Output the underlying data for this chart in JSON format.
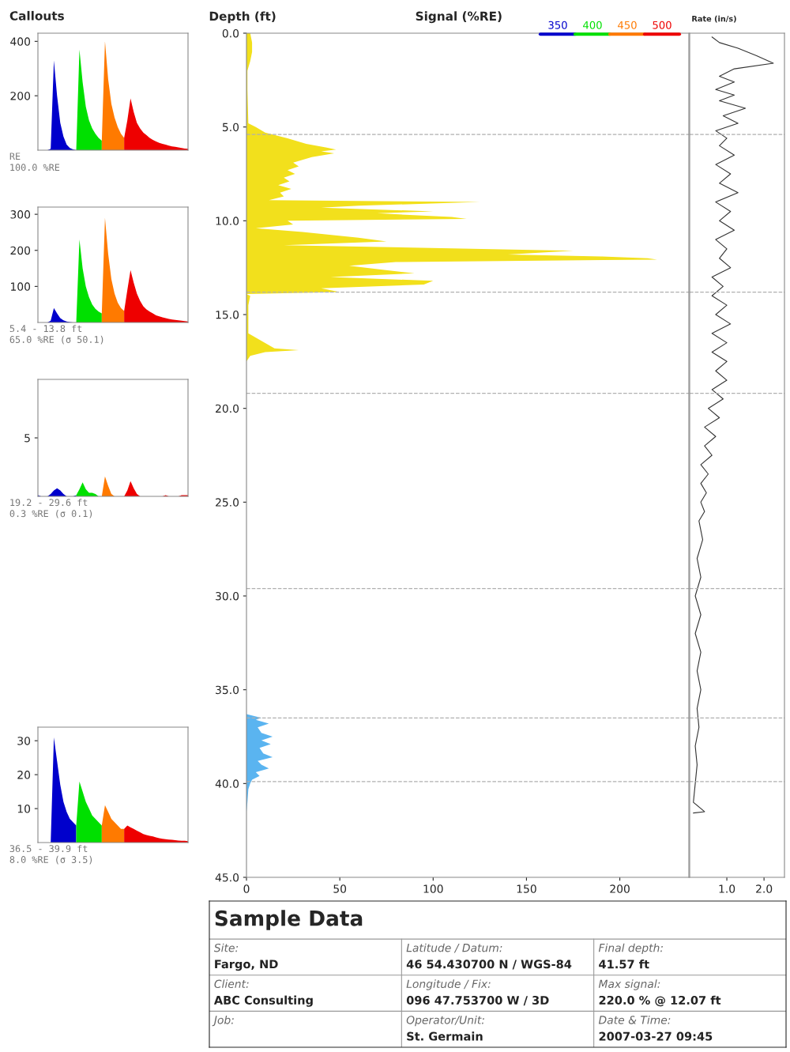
{
  "chart_data": [
    {
      "type": "area",
      "title": "Callouts",
      "categories": [
        null,
        null,
        null,
        null,
        null,
        null,
        null,
        null,
        null,
        null,
        null,
        null,
        null,
        null,
        null,
        null,
        null,
        null,
        null,
        null,
        null,
        null,
        null,
        null,
        null,
        null,
        null,
        null,
        null,
        null,
        null,
        null,
        null,
        null,
        null,
        null,
        null,
        null,
        null,
        null,
        null,
        null,
        null,
        null,
        null,
        null,
        null,
        null
      ],
      "ylim": [
        0,
        430
      ],
      "yticks": [
        200,
        400
      ],
      "tick_labels": "y",
      "legend": "top right",
      "annotations": [
        "RE",
        "100.0 %RE"
      ],
      "series": [
        {
          "name": "350",
          "color": "#0000cc",
          "values": [
            0,
            0,
            0,
            0,
            5,
            330,
            200,
            100,
            50,
            20,
            8,
            3,
            0,
            null,
            null,
            null,
            null,
            null,
            null,
            null,
            null,
            null,
            null,
            null,
            null,
            null,
            null,
            null,
            null,
            null,
            null,
            null,
            null,
            null,
            null,
            null,
            null,
            null,
            null,
            null,
            null,
            null,
            null,
            null,
            null,
            null,
            null,
            null
          ]
        },
        {
          "name": "400",
          "color": "#00e000",
          "values": [
            null,
            null,
            null,
            null,
            null,
            null,
            null,
            null,
            null,
            null,
            null,
            null,
            0,
            370,
            250,
            160,
            110,
            80,
            60,
            45,
            35,
            null,
            null,
            null,
            null,
            null,
            null,
            null,
            null,
            null,
            null,
            null,
            null,
            null,
            null,
            null,
            null,
            null,
            null,
            null,
            null,
            null,
            null,
            null,
            null,
            null,
            null,
            null
          ]
        },
        {
          "name": "450",
          "color": "#ff7a00",
          "values": [
            null,
            null,
            null,
            null,
            null,
            null,
            null,
            null,
            null,
            null,
            null,
            null,
            null,
            null,
            null,
            null,
            null,
            null,
            null,
            null,
            35,
            400,
            260,
            170,
            120,
            85,
            60,
            45,
            null,
            null,
            null,
            null,
            null,
            null,
            null,
            null,
            null,
            null,
            null,
            null,
            null,
            null,
            null,
            null,
            null,
            null,
            null,
            null
          ]
        },
        {
          "name": "500",
          "color": "#ee0000",
          "values": [
            null,
            null,
            null,
            null,
            null,
            null,
            null,
            null,
            null,
            null,
            null,
            null,
            null,
            null,
            null,
            null,
            null,
            null,
            null,
            null,
            null,
            null,
            null,
            null,
            null,
            null,
            null,
            45,
            110,
            190,
            140,
            100,
            80,
            65,
            55,
            45,
            38,
            32,
            27,
            23,
            20,
            17,
            14,
            12,
            10,
            8,
            6,
            5
          ]
        }
      ]
    },
    {
      "type": "area",
      "categories": [
        null,
        null,
        null,
        null,
        null,
        null,
        null,
        null,
        null,
        null,
        null,
        null,
        null,
        null,
        null,
        null,
        null,
        null,
        null,
        null,
        null,
        null,
        null,
        null,
        null,
        null,
        null,
        null,
        null,
        null,
        null,
        null,
        null,
        null,
        null,
        null,
        null,
        null,
        null,
        null,
        null,
        null,
        null,
        null,
        null,
        null,
        null,
        null
      ],
      "ylim": [
        0,
        320
      ],
      "yticks": [
        100,
        200,
        300
      ],
      "tick_labels": "y",
      "annotations": [
        "5.4 - 13.8 ft",
        "65.0 %RE (σ 50.1)"
      ],
      "series": [
        {
          "color": "#0000cc",
          "values": [
            0,
            0,
            0,
            0,
            5,
            40,
            25,
            12,
            6,
            3,
            1,
            0,
            0,
            null,
            null,
            null,
            null,
            null,
            null,
            null,
            null,
            null,
            null,
            null,
            null,
            null,
            null,
            null,
            null,
            null,
            null,
            null,
            null,
            null,
            null,
            null,
            null,
            null,
            null,
            null,
            null,
            null,
            null,
            null,
            null,
            null,
            null,
            null
          ]
        },
        {
          "color": "#00e000",
          "values": [
            null,
            null,
            null,
            null,
            null,
            null,
            null,
            null,
            null,
            null,
            null,
            null,
            0,
            230,
            150,
            100,
            70,
            50,
            38,
            30,
            25,
            null,
            null,
            null,
            null,
            null,
            null,
            null,
            null,
            null,
            null,
            null,
            null,
            null,
            null,
            null,
            null,
            null,
            null,
            null,
            null,
            null,
            null,
            null,
            null,
            null,
            null,
            null
          ]
        },
        {
          "color": "#ff7a00",
          "values": [
            null,
            null,
            null,
            null,
            null,
            null,
            null,
            null,
            null,
            null,
            null,
            null,
            null,
            null,
            null,
            null,
            null,
            null,
            null,
            null,
            25,
            290,
            190,
            120,
            80,
            55,
            40,
            32,
            null,
            null,
            null,
            null,
            null,
            null,
            null,
            null,
            null,
            null,
            null,
            null,
            null,
            null,
            null,
            null,
            null,
            null,
            null,
            null
          ]
        },
        {
          "color": "#ee0000",
          "values": [
            null,
            null,
            null,
            null,
            null,
            null,
            null,
            null,
            null,
            null,
            null,
            null,
            null,
            null,
            null,
            null,
            null,
            null,
            null,
            null,
            null,
            null,
            null,
            null,
            null,
            null,
            null,
            32,
            90,
            145,
            110,
            80,
            60,
            45,
            36,
            30,
            25,
            20,
            17,
            14,
            12,
            10,
            8,
            7,
            6,
            5,
            4,
            3
          ]
        }
      ]
    },
    {
      "type": "area",
      "categories": [
        null,
        null,
        null,
        null,
        null,
        null,
        null,
        null,
        null,
        null,
        null,
        null,
        null,
        null,
        null,
        null,
        null,
        null,
        null,
        null,
        null,
        null,
        null,
        null,
        null,
        null,
        null,
        null,
        null,
        null,
        null,
        null,
        null,
        null,
        null,
        null,
        null,
        null,
        null,
        null,
        null,
        null,
        null,
        null,
        null,
        null,
        null,
        null
      ],
      "ylim": [
        0,
        10
      ],
      "yticks": [
        5
      ],
      "tick_labels": "y",
      "annotations": [
        "19.2 - 29.6 ft",
        "0.3 %RE (σ 0.1)"
      ],
      "series": [
        {
          "color": "#0000cc",
          "values": [
            0.1,
            0,
            0,
            0,
            0.2,
            0.5,
            0.7,
            0.5,
            0.2,
            0,
            0,
            0,
            0.1,
            null,
            null,
            null,
            null,
            null,
            null,
            null,
            null,
            null,
            null,
            null,
            null,
            null,
            null,
            null,
            null,
            null,
            null,
            null,
            null,
            null,
            null,
            null,
            null,
            null,
            null,
            null,
            null,
            null,
            null,
            null,
            null,
            null,
            null,
            null
          ]
        },
        {
          "color": "#00e000",
          "values": [
            null,
            null,
            null,
            null,
            null,
            null,
            null,
            null,
            null,
            null,
            null,
            null,
            0.1,
            0.6,
            1.2,
            0.6,
            0.3,
            0.3,
            0.2,
            0,
            0,
            null,
            null,
            null,
            null,
            null,
            null,
            null,
            null,
            null,
            null,
            null,
            null,
            null,
            null,
            null,
            null,
            null,
            null,
            null,
            null,
            null,
            null,
            null,
            null,
            null,
            null,
            null
          ]
        },
        {
          "color": "#ff7a00",
          "values": [
            null,
            null,
            null,
            null,
            null,
            null,
            null,
            null,
            null,
            null,
            null,
            null,
            null,
            null,
            null,
            null,
            null,
            null,
            null,
            null,
            0,
            1.7,
            0.9,
            0.2,
            0,
            0,
            0,
            0,
            null,
            null,
            null,
            null,
            null,
            null,
            null,
            null,
            null,
            null,
            null,
            null,
            null,
            null,
            null,
            null,
            null,
            null,
            null,
            null
          ]
        },
        {
          "color": "#ee0000",
          "values": [
            null,
            null,
            null,
            null,
            null,
            null,
            null,
            null,
            null,
            null,
            null,
            null,
            null,
            null,
            null,
            null,
            null,
            null,
            null,
            null,
            null,
            null,
            null,
            null,
            null,
            null,
            null,
            0,
            0.5,
            1.3,
            0.7,
            0.2,
            0,
            0,
            0,
            0,
            0,
            0,
            0,
            0,
            0.1,
            0,
            0,
            0,
            0,
            0.1,
            0.1,
            0.1
          ]
        }
      ]
    },
    {
      "type": "area",
      "categories": [
        null,
        null,
        null,
        null,
        null,
        null,
        null,
        null,
        null,
        null,
        null,
        null,
        null,
        null,
        null,
        null,
        null,
        null,
        null,
        null,
        null,
        null,
        null,
        null,
        null,
        null,
        null,
        null,
        null,
        null,
        null,
        null,
        null,
        null,
        null,
        null,
        null,
        null,
        null,
        null,
        null,
        null,
        null,
        null,
        null,
        null,
        null,
        null
      ],
      "ylim": [
        0,
        34
      ],
      "yticks": [
        10,
        20,
        30
      ],
      "tick_labels": "y",
      "annotations": [
        "36.5 - 39.9 ft",
        "8.0 %RE (σ 3.5)"
      ],
      "series": [
        {
          "color": "#0000cc",
          "values": [
            0,
            0,
            0,
            0,
            0,
            31,
            24,
            17,
            12,
            9,
            7,
            6,
            5,
            null,
            null,
            null,
            null,
            null,
            null,
            null,
            null,
            null,
            null,
            null,
            null,
            null,
            null,
            null,
            null,
            null,
            null,
            null,
            null,
            null,
            null,
            null,
            null,
            null,
            null,
            null,
            null,
            null,
            null,
            null,
            null,
            null,
            null,
            null
          ]
        },
        {
          "color": "#00e000",
          "values": [
            null,
            null,
            null,
            null,
            null,
            null,
            null,
            null,
            null,
            null,
            null,
            null,
            5,
            18,
            15,
            12,
            10,
            8,
            7,
            6,
            5,
            null,
            null,
            null,
            null,
            null,
            null,
            null,
            null,
            null,
            null,
            null,
            null,
            null,
            null,
            null,
            null,
            null,
            null,
            null,
            null,
            null,
            null,
            null,
            null,
            null,
            null,
            null
          ]
        },
        {
          "color": "#ff7a00",
          "values": [
            null,
            null,
            null,
            null,
            null,
            null,
            null,
            null,
            null,
            null,
            null,
            null,
            null,
            null,
            null,
            null,
            null,
            null,
            null,
            null,
            5,
            11,
            9,
            7,
            6,
            5,
            4,
            4,
            null,
            null,
            null,
            null,
            null,
            null,
            null,
            null,
            null,
            null,
            null,
            null,
            null,
            null,
            null,
            null,
            null,
            null,
            null,
            null
          ]
        },
        {
          "color": "#ee0000",
          "values": [
            null,
            null,
            null,
            null,
            null,
            null,
            null,
            null,
            null,
            null,
            null,
            null,
            null,
            null,
            null,
            null,
            null,
            null,
            null,
            null,
            null,
            null,
            null,
            null,
            null,
            null,
            null,
            4,
            5,
            4.5,
            4,
            3.5,
            3,
            2.5,
            2.2,
            2,
            1.8,
            1.5,
            1.3,
            1.1,
            1,
            0.9,
            0.8,
            0.7,
            0.6,
            0.5,
            0.5,
            0.4
          ]
        }
      ]
    },
    {
      "type": "area",
      "orientation": "horizontal",
      "xlabel": "Signal (%RE)",
      "ylabel": "Depth (ft)",
      "xlim": [
        0,
        237
      ],
      "xticks": [
        0,
        50,
        100,
        150,
        200
      ],
      "ylim": [
        45,
        0
      ],
      "yticks": [
        {
          "value": 0,
          "label": "0.0"
        },
        {
          "value": 5,
          "label": "5.0"
        },
        {
          "value": 10,
          "label": "10.0"
        },
        {
          "value": 15,
          "label": "15.0"
        },
        {
          "value": 20,
          "label": "20.0"
        },
        {
          "value": 25,
          "label": "25.0"
        },
        {
          "value": 30,
          "label": "30.0"
        },
        {
          "value": 35,
          "label": "35.0"
        },
        {
          "value": 40,
          "label": "40.0"
        },
        {
          "value": 45,
          "label": "45.0"
        }
      ],
      "ref_lines": [
        {
          "axis": "y",
          "value": 5.4,
          "color": "#b0b0b0",
          "line_style": "dashed"
        },
        {
          "axis": "y",
          "value": 13.8,
          "color": "#b0b0b0",
          "line_style": "dashed"
        },
        {
          "axis": "y",
          "value": 19.2,
          "color": "#b0b0b0",
          "line_style": "dashed"
        },
        {
          "axis": "y",
          "value": 29.6,
          "color": "#b0b0b0",
          "line_style": "dashed"
        },
        {
          "axis": "y",
          "value": 36.5,
          "color": "#b0b0b0",
          "line_style": "dashed"
        },
        {
          "axis": "y",
          "value": 39.9,
          "color": "#b0b0b0",
          "line_style": "dashed"
        }
      ],
      "series": [
        {
          "color": "#f2e01c",
          "x": [
            0.0,
            0.5,
            1.0,
            1.5,
            2.0,
            3.0,
            4.8,
            5.0,
            5.3,
            5.6,
            5.9,
            6.1,
            6.2,
            6.3,
            6.4,
            6.6,
            6.9,
            7.1,
            7.3,
            7.5,
            7.7,
            7.9,
            8.1,
            8.3,
            8.5,
            8.7,
            8.9,
            9.0,
            9.2,
            9.3,
            9.5,
            9.6,
            9.8,
            9.9,
            10.0,
            10.2,
            10.4,
            10.6,
            10.9,
            11.1,
            11.3,
            11.6,
            11.8,
            11.9,
            12.0,
            12.07,
            12.2,
            12.4,
            12.6,
            12.8,
            13.0,
            13.2,
            13.4,
            13.6,
            13.8,
            13.9,
            14.0,
            14.5,
            15.0,
            16.0,
            16.8,
            16.9,
            17.0,
            17.2,
            17.5,
            18.0
          ],
          "values": [
            2,
            3,
            3,
            2,
            0.5,
            0.5,
            1,
            5,
            10,
            22,
            32,
            43,
            48,
            40,
            47,
            35,
            25,
            28,
            22,
            26,
            20,
            23,
            17,
            24,
            18,
            20,
            12,
            125,
            60,
            40,
            100,
            70,
            110,
            118,
            22,
            25,
            5,
            30,
            60,
            75,
            20,
            175,
            140,
            190,
            215,
            220,
            80,
            55,
            72,
            90,
            45,
            100,
            95,
            40,
            50,
            0,
            2,
            1,
            1,
            1,
            15,
            28,
            10,
            2,
            0,
            0
          ]
        },
        {
          "color": "#5ab4f0",
          "x": [
            36.3,
            36.5,
            36.6,
            36.8,
            37.0,
            37.3,
            37.5,
            37.7,
            37.9,
            38.1,
            38.4,
            38.6,
            38.8,
            39.0,
            39.2,
            39.4,
            39.6,
            39.8,
            40.0,
            40.3,
            41.0,
            41.5
          ],
          "values": [
            0,
            8,
            5,
            12,
            6,
            8,
            14,
            8,
            13,
            7,
            9,
            14,
            6,
            8,
            12,
            5,
            7,
            3,
            2,
            1,
            0.5,
            0
          ]
        }
      ]
    },
    {
      "type": "line",
      "orientation": "horizontal",
      "xlabel": "Rate (in/s)",
      "xlim": [
        0,
        2.55
      ],
      "xticks": [
        {
          "value": 1,
          "label": "1.0"
        },
        {
          "value": 2,
          "label": "2.0"
        }
      ],
      "ylim": [
        45,
        0
      ],
      "tick_labels": "x",
      "ref_lines": [
        {
          "axis": "y",
          "value": 5.4,
          "color": "#b0b0b0",
          "line_style": "dashed"
        },
        {
          "axis": "y",
          "value": 13.8,
          "color": "#b0b0b0",
          "line_style": "dashed"
        },
        {
          "axis": "y",
          "value": 19.2,
          "color": "#b0b0b0",
          "line_style": "dashed"
        },
        {
          "axis": "y",
          "value": 29.6,
          "color": "#b0b0b0",
          "line_style": "dashed"
        },
        {
          "axis": "y",
          "value": 36.5,
          "color": "#b0b0b0",
          "line_style": "dashed"
        },
        {
          "axis": "y",
          "value": 39.9,
          "color": "#b0b0b0",
          "line_style": "dashed"
        }
      ],
      "series": [
        {
          "color": "#333333",
          "x": [
            0.2,
            0.5,
            0.8,
            1.2,
            1.6,
            1.9,
            2.3,
            2.6,
            3.0,
            3.3,
            3.6,
            4.0,
            4.4,
            4.8,
            5.2,
            5.6,
            6.0,
            6.5,
            7.0,
            7.5,
            8.0,
            8.5,
            9.0,
            9.5,
            10.0,
            10.5,
            11.0,
            11.5,
            12.0,
            12.5,
            13.0,
            13.5,
            14.0,
            14.5,
            15.0,
            15.5,
            16.0,
            16.5,
            17.0,
            17.5,
            18.0,
            18.5,
            19.0,
            19.5,
            20.0,
            20.5,
            21.0,
            21.5,
            22.0,
            22.5,
            23.0,
            23.5,
            24.0,
            24.5,
            25.0,
            25.5,
            26.0,
            27.0,
            28.0,
            29.0,
            30.0,
            31.0,
            32.0,
            33.0,
            34.0,
            35.0,
            36.0,
            37.0,
            38.0,
            39.0,
            40.0,
            41.0,
            41.5,
            41.57
          ],
          "values": [
            0.6,
            0.8,
            1.3,
            1.8,
            2.25,
            1.2,
            0.8,
            1.2,
            0.7,
            1.2,
            0.8,
            1.5,
            0.9,
            1.3,
            0.7,
            1.0,
            0.8,
            1.2,
            0.7,
            1.1,
            0.8,
            1.3,
            0.7,
            1.1,
            0.8,
            1.2,
            0.7,
            1.0,
            0.8,
            1.1,
            0.6,
            0.9,
            0.6,
            1.0,
            0.7,
            1.1,
            0.6,
            1.0,
            0.6,
            1.0,
            0.7,
            1.0,
            0.6,
            0.9,
            0.5,
            0.8,
            0.4,
            0.7,
            0.4,
            0.6,
            0.3,
            0.5,
            0.3,
            0.45,
            0.3,
            0.4,
            0.25,
            0.35,
            0.2,
            0.3,
            0.15,
            0.3,
            0.15,
            0.3,
            0.2,
            0.3,
            0.2,
            0.25,
            0.15,
            0.2,
            0.15,
            0.1,
            0.4,
            0.1
          ]
        }
      ]
    },
    {
      "type": "other",
      "title": "Sample Data",
      "annotations": [
        "Site:\nFargo, ND",
        "Latitude / Datum:\n46 54.430700 N / WGS-84",
        "Final depth:\n41.57 ft",
        "Client:\nABC Consulting",
        "Longitude / Fix:\n096 47.753700 W / 3D",
        "Max signal:\n220.0 % @ 12.07 ft",
        "Job:",
        "Operator/Unit:\nSt. Germain",
        "Date & Time:\n2007-03-27 09:45"
      ]
    }
  ]
}
